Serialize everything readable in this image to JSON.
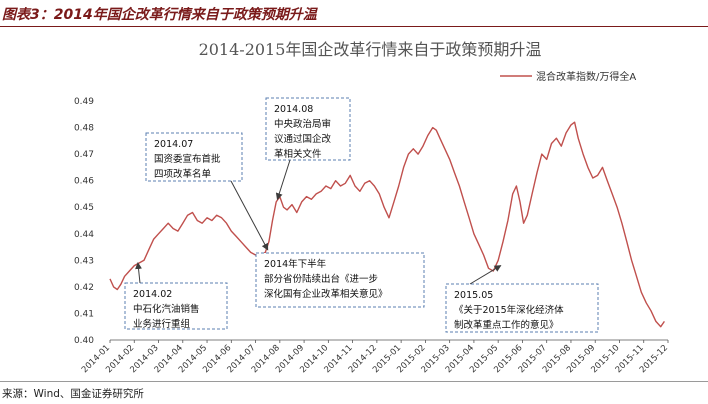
{
  "figure": {
    "caption": "图表3：2014年国企改革行情来自于政策预期升温",
    "source": "来源：Wind、国金证券研究所"
  },
  "colors": {
    "series": "#c0504d",
    "annotation_border": "#5b7fb0",
    "arrow": "#3c3c3c",
    "caption": "#7a1a1a"
  },
  "chart_data": {
    "type": "line",
    "title": "2014-2015年国企改革行情来自于政策预期升温",
    "xlabel": "",
    "ylabel": "",
    "ylim": [
      0.4,
      0.49
    ],
    "yticks": [
      "0.40",
      "0.41",
      "0.42",
      "0.43",
      "0.44",
      "0.45",
      "0.46",
      "0.47",
      "0.48",
      "0.49"
    ],
    "x_categories": [
      "2014-01",
      "2014-02",
      "2014-03",
      "2014-04",
      "2014-05",
      "2014-06",
      "2014-07",
      "2014-08",
      "2014-09",
      "2014-10",
      "2014-11",
      "2014-12",
      "2015-01",
      "2015-02",
      "2015-03",
      "2015-04",
      "2015-05",
      "2015-06",
      "2015-07",
      "2015-08",
      "2015-09",
      "2015-10",
      "2015-11",
      "2015-12"
    ],
    "legend_position": "top-right",
    "series": [
      {
        "name": "混合改革指数/万得全A",
        "points": [
          [
            0.0,
            0.423
          ],
          [
            0.15,
            0.42
          ],
          [
            0.3,
            0.419
          ],
          [
            0.45,
            0.421
          ],
          [
            0.6,
            0.424
          ],
          [
            0.8,
            0.426
          ],
          [
            1.0,
            0.428
          ],
          [
            1.2,
            0.429
          ],
          [
            1.4,
            0.43
          ],
          [
            1.6,
            0.434
          ],
          [
            1.8,
            0.438
          ],
          [
            2.0,
            0.44
          ],
          [
            2.2,
            0.442
          ],
          [
            2.4,
            0.444
          ],
          [
            2.6,
            0.442
          ],
          [
            2.8,
            0.441
          ],
          [
            3.0,
            0.444
          ],
          [
            3.2,
            0.447
          ],
          [
            3.4,
            0.448
          ],
          [
            3.6,
            0.445
          ],
          [
            3.8,
            0.444
          ],
          [
            4.0,
            0.446
          ],
          [
            4.2,
            0.445
          ],
          [
            4.4,
            0.447
          ],
          [
            4.6,
            0.446
          ],
          [
            4.8,
            0.444
          ],
          [
            5.0,
            0.441
          ],
          [
            5.2,
            0.439
          ],
          [
            5.4,
            0.437
          ],
          [
            5.6,
            0.435
          ],
          [
            5.8,
            0.433
          ],
          [
            6.0,
            0.432
          ],
          [
            6.2,
            0.432
          ],
          [
            6.4,
            0.433
          ],
          [
            6.55,
            0.437
          ],
          [
            6.7,
            0.445
          ],
          [
            6.85,
            0.452
          ],
          [
            7.0,
            0.454
          ],
          [
            7.15,
            0.45
          ],
          [
            7.3,
            0.449
          ],
          [
            7.5,
            0.451
          ],
          [
            7.7,
            0.448
          ],
          [
            7.9,
            0.452
          ],
          [
            8.1,
            0.454
          ],
          [
            8.3,
            0.453
          ],
          [
            8.5,
            0.455
          ],
          [
            8.7,
            0.456
          ],
          [
            8.9,
            0.458
          ],
          [
            9.1,
            0.457
          ],
          [
            9.3,
            0.46
          ],
          [
            9.5,
            0.458
          ],
          [
            9.7,
            0.459
          ],
          [
            9.9,
            0.462
          ],
          [
            10.1,
            0.458
          ],
          [
            10.3,
            0.456
          ],
          [
            10.5,
            0.459
          ],
          [
            10.7,
            0.46
          ],
          [
            10.9,
            0.458
          ],
          [
            11.1,
            0.455
          ],
          [
            11.3,
            0.45
          ],
          [
            11.5,
            0.446
          ],
          [
            11.7,
            0.452
          ],
          [
            11.9,
            0.458
          ],
          [
            12.1,
            0.465
          ],
          [
            12.3,
            0.47
          ],
          [
            12.5,
            0.472
          ],
          [
            12.7,
            0.47
          ],
          [
            12.9,
            0.473
          ],
          [
            13.1,
            0.477
          ],
          [
            13.3,
            0.48
          ],
          [
            13.45,
            0.479
          ],
          [
            13.6,
            0.476
          ],
          [
            13.8,
            0.472
          ],
          [
            14.0,
            0.468
          ],
          [
            14.2,
            0.463
          ],
          [
            14.4,
            0.458
          ],
          [
            14.6,
            0.452
          ],
          [
            14.8,
            0.446
          ],
          [
            15.0,
            0.44
          ],
          [
            15.2,
            0.436
          ],
          [
            15.4,
            0.432
          ],
          [
            15.6,
            0.427
          ],
          [
            15.8,
            0.426
          ],
          [
            16.0,
            0.43
          ],
          [
            16.2,
            0.437
          ],
          [
            16.4,
            0.445
          ],
          [
            16.6,
            0.455
          ],
          [
            16.75,
            0.458
          ],
          [
            16.9,
            0.452
          ],
          [
            17.05,
            0.444
          ],
          [
            17.2,
            0.447
          ],
          [
            17.4,
            0.455
          ],
          [
            17.6,
            0.463
          ],
          [
            17.8,
            0.47
          ],
          [
            18.0,
            0.468
          ],
          [
            18.2,
            0.474
          ],
          [
            18.4,
            0.476
          ],
          [
            18.6,
            0.473
          ],
          [
            18.8,
            0.478
          ],
          [
            19.0,
            0.481
          ],
          [
            19.15,
            0.482
          ],
          [
            19.3,
            0.476
          ],
          [
            19.5,
            0.47
          ],
          [
            19.7,
            0.465
          ],
          [
            19.9,
            0.461
          ],
          [
            20.1,
            0.462
          ],
          [
            20.3,
            0.465
          ],
          [
            20.5,
            0.46
          ],
          [
            20.7,
            0.455
          ],
          [
            20.9,
            0.45
          ],
          [
            21.1,
            0.444
          ],
          [
            21.3,
            0.437
          ],
          [
            21.5,
            0.43
          ],
          [
            21.7,
            0.424
          ],
          [
            21.9,
            0.418
          ],
          [
            22.1,
            0.414
          ],
          [
            22.3,
            0.411
          ],
          [
            22.5,
            0.407
          ],
          [
            22.7,
            0.405
          ],
          [
            22.85,
            0.407
          ]
        ]
      }
    ],
    "annotations": [
      {
        "lines": [
          "2014.02",
          "中石化汽油销售",
          "业务进行重组"
        ],
        "target": [
          1.15,
          0.429
        ]
      },
      {
        "lines": [
          "2014.07",
          "国资委宣布首批",
          "四项改革名单"
        ],
        "target": [
          6.5,
          0.434
        ]
      },
      {
        "lines": [
          "2014.08",
          "中央政治局审",
          "议通过国企改",
          "革相关文件"
        ],
        "target": [
          6.9,
          0.453
        ]
      },
      {
        "lines": [
          "2014年下半年",
          "部分省份陆续出台《进一步",
          "深化国有企业改革相关意见》"
        ],
        "target": null
      },
      {
        "lines": [
          "2015.05",
          "《关于2015年深化经济体",
          "制改革重点工作的意见》"
        ],
        "target": [
          16.1,
          0.428
        ]
      }
    ]
  }
}
